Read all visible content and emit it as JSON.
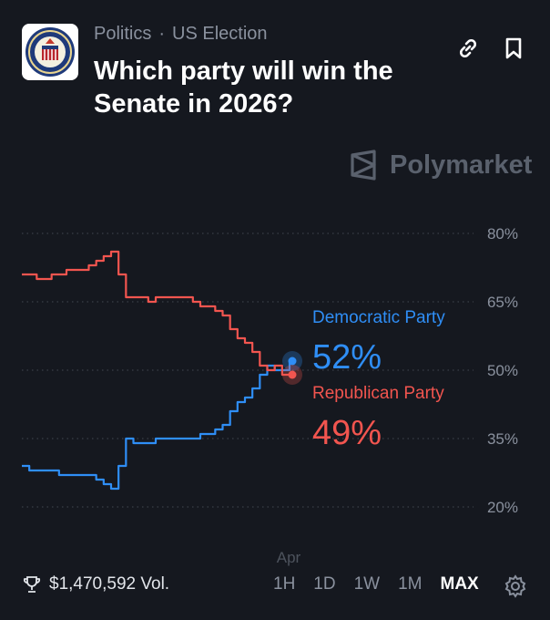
{
  "header": {
    "category": "Politics",
    "separator": "·",
    "subcategory": "US Election",
    "title": "Which party will win the Senate in 2026?",
    "logo": "us-senate-seal",
    "link_icon": "link-icon",
    "bookmark_icon": "bookmark-icon"
  },
  "watermark": {
    "brand": "Polymarket"
  },
  "chart_data": {
    "type": "line",
    "title": "",
    "xlabel": "",
    "ylabel": "",
    "x_tick_labels": [
      "Apr"
    ],
    "y_ticks": [
      20,
      35,
      50,
      65,
      80
    ],
    "y_tick_labels": [
      "80%",
      "65%",
      "50%",
      "35%",
      "20%"
    ],
    "ylim": [
      15,
      85
    ],
    "grid": "dotted horizontal",
    "series": [
      {
        "name": "Democratic Party",
        "color": "#2f8ef6",
        "current_label": "52%",
        "values": [
          29,
          28,
          28,
          28,
          28,
          27,
          27,
          27,
          27,
          27,
          26,
          25,
          24,
          29,
          35,
          34,
          34,
          34,
          35,
          35,
          35,
          35,
          35,
          35,
          36,
          36,
          37,
          38,
          41,
          43,
          44,
          46,
          49,
          51,
          50,
          50,
          52
        ]
      },
      {
        "name": "Republican Party",
        "color": "#f2554f",
        "current_label": "49%",
        "values": [
          71,
          71,
          70,
          70,
          71,
          71,
          72,
          72,
          72,
          73,
          74,
          75,
          76,
          71,
          66,
          66,
          66,
          65,
          66,
          66,
          66,
          66,
          66,
          65,
          64,
          64,
          63,
          62,
          59,
          57,
          56,
          54,
          51,
          50,
          51,
          49,
          49
        ]
      }
    ]
  },
  "footer": {
    "volume": "$1,470,592 Vol.",
    "trophy_icon": "trophy-icon",
    "ranges": [
      "1H",
      "1D",
      "1W",
      "1M",
      "MAX"
    ],
    "active_range": "MAX",
    "settings_icon": "gear-icon"
  }
}
